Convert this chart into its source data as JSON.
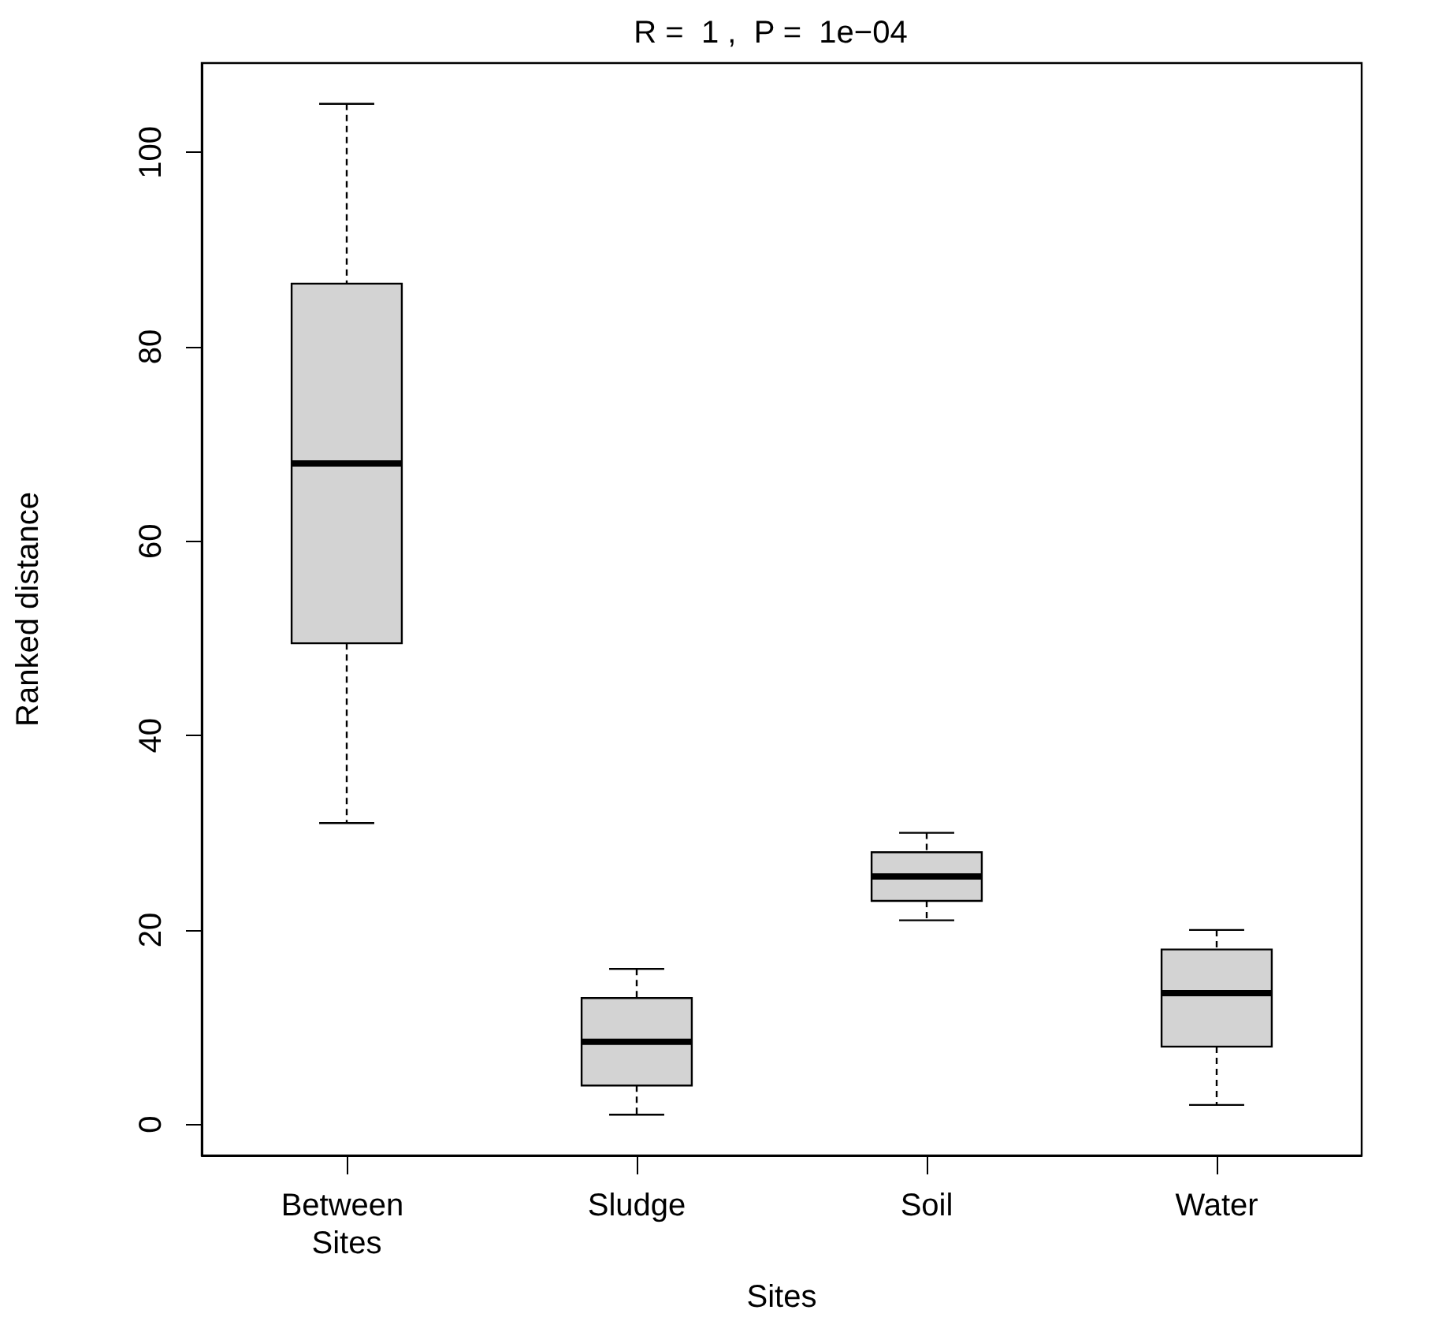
{
  "chart_data": {
    "type": "box",
    "title": "R =  1 ,  P =  1e−04",
    "xlabel": "Sites",
    "ylabel": "Ranked distance",
    "categories": [
      "Between Sites",
      "Sludge",
      "Soil",
      "Water"
    ],
    "boxes": [
      {
        "low": 31,
        "q1": 49.5,
        "median": 68,
        "q3": 86.5,
        "high": 105
      },
      {
        "low": 1,
        "q1": 4,
        "median": 8.5,
        "q3": 13,
        "high": 16
      },
      {
        "low": 21,
        "q1": 23,
        "median": 25.5,
        "q3": 28,
        "high": 30
      },
      {
        "low": 2,
        "q1": 8,
        "median": 13.5,
        "q3": 18,
        "high": 20
      }
    ],
    "color": "#d3d3d3",
    "ylim": [
      -3.2,
      109.2
    ],
    "yticks": [
      0,
      20,
      40,
      60,
      80,
      100
    ],
    "grid": false
  }
}
